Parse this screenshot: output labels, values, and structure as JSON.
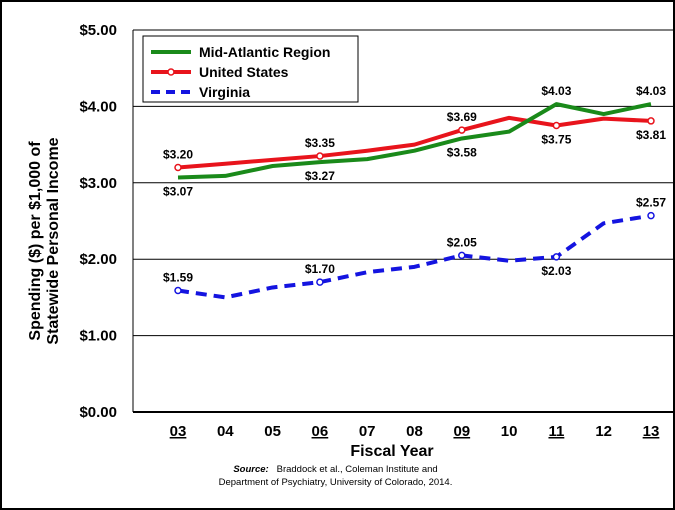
{
  "chart_data": {
    "type": "line",
    "xlabel": "Fiscal Year",
    "ylabel_lines": [
      "Spending ($) per $1,000 of",
      "Statewide Personal Income"
    ],
    "ylim": [
      0,
      5
    ],
    "yticks": [
      "$0.00",
      "$1.00",
      "$2.00",
      "$3.00",
      "$4.00",
      "$5.00"
    ],
    "yticks_values": [
      0,
      1,
      2,
      3,
      4,
      5
    ],
    "categories": [
      "03",
      "04",
      "05",
      "06",
      "07",
      "08",
      "09",
      "10",
      "11",
      "12",
      "13"
    ],
    "underlined_categories": [
      "03",
      "06",
      "09",
      "11",
      "13"
    ],
    "grid": "horizontal",
    "legend_position": "top-left",
    "series": [
      {
        "name": "Mid-Atlantic Region",
        "color": "#1a8a1a",
        "style": "solid",
        "markers": false,
        "values": [
          3.07,
          3.09,
          3.22,
          3.27,
          3.31,
          3.42,
          3.58,
          3.67,
          4.03,
          3.9,
          4.03
        ],
        "labels": {
          "0": "$3.07",
          "3": "$3.27",
          "6": "$3.58",
          "8": "$4.03",
          "10": "$4.03"
        },
        "label_side": {
          "0": "below",
          "3": "below",
          "6": "below",
          "8": "above",
          "10": "above"
        }
      },
      {
        "name": "United States",
        "color": "#e8141c",
        "style": "solid",
        "markers": true,
        "values": [
          3.2,
          3.25,
          3.3,
          3.35,
          3.42,
          3.5,
          3.69,
          3.85,
          3.75,
          3.84,
          3.81
        ],
        "labels": {
          "0": "$3.20",
          "3": "$3.35",
          "6": "$3.69",
          "8": "$3.75",
          "10": "$3.81"
        },
        "label_side": {
          "0": "above",
          "3": "above",
          "6": "above",
          "8": "below",
          "10": "below"
        }
      },
      {
        "name": "Virginia",
        "color": "#1414e0",
        "style": "dashed",
        "markers": true,
        "values": [
          1.59,
          1.5,
          1.63,
          1.7,
          1.83,
          1.9,
          2.05,
          1.98,
          2.03,
          2.47,
          2.57
        ],
        "labels": {
          "0": "$1.59",
          "3": "$1.70",
          "6": "$2.05",
          "8": "$2.03",
          "10": "$2.57"
        },
        "label_side": {
          "0": "above",
          "3": "above",
          "6": "above",
          "8": "below",
          "10": "above"
        }
      }
    ]
  },
  "source": {
    "label": "Source:",
    "text1": "Braddock et al., Coleman Institute and",
    "text2": "Department of Psychiatry, University of Colorado, 2014."
  }
}
